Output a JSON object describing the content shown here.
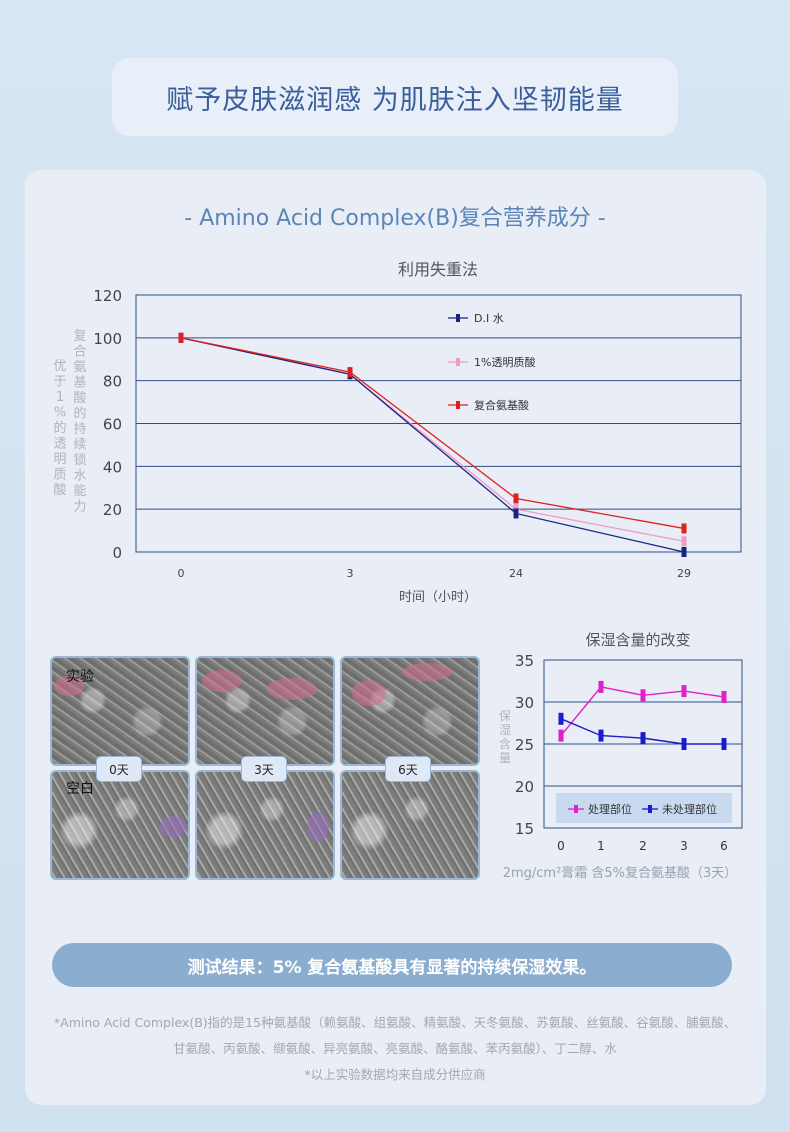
{
  "banner": {
    "title": "赋予皮肤滋润感  为肌肤注入坚韧能量"
  },
  "subtitle": "- Amino Acid Complex(B)复合营养成分 -",
  "chart_data": [
    {
      "type": "line",
      "title": "利用失重法",
      "xlabel": "时间（小时）",
      "ylabel_left": "优于1%的透明质酸",
      "ylabel_right": "复合氨基酸的持续锁水能力",
      "categories": [
        "0",
        "3",
        "24",
        "29"
      ],
      "ylim": [
        0,
        120
      ],
      "yticks": [
        0,
        20,
        40,
        60,
        80,
        100,
        120
      ],
      "grid": true,
      "legend_position": "top-right-inside",
      "series": [
        {
          "name": "D.I 水",
          "color": "#1a237e",
          "values": [
            100,
            83,
            18,
            0
          ]
        },
        {
          "name": "1%透明质酸",
          "color": "#f29ac8",
          "values": [
            100,
            83,
            20,
            5
          ]
        },
        {
          "name": "复合氨基酸",
          "color": "#e02020",
          "values": [
            100,
            84,
            25,
            11
          ]
        }
      ]
    },
    {
      "type": "line",
      "title": "保湿含量的改变",
      "ylabel": "保湿含量",
      "categories": [
        "0",
        "1",
        "2",
        "3",
        "6"
      ],
      "ylim": [
        15,
        35
      ],
      "yticks": [
        15,
        20,
        25,
        30,
        35
      ],
      "grid": true,
      "legend_position": "bottom",
      "series": [
        {
          "name": "处理部位",
          "color": "#e020c8",
          "values": [
            26,
            31.8,
            30.8,
            31.3,
            30.6
          ]
        },
        {
          "name": "未处理部位",
          "color": "#1a1ad0",
          "values": [
            28,
            26,
            25.7,
            25,
            25
          ]
        }
      ]
    }
  ],
  "photos": {
    "row_labels": [
      "实验",
      "空白"
    ],
    "day_tags": [
      "0天",
      "3天",
      "6天"
    ]
  },
  "chart2_caption": "2mg/cm²膏霜 含5%复合氨基酸（3天）",
  "result": "测试结果：5% 复合氨基酸具有显著的持续保湿效果。",
  "footnotes": {
    "line1": "*Amino Acid Complex(B)指的是15种氨基酸（赖氨酸、组氨酸、精氨酸、天冬氨酸、苏氨酸、丝氨酸、谷氨酸、脯氨酸、",
    "line2": "甘氨酸、丙氨酸、缬氨酸、异亮氨酸、亮氨酸、酪氨酸、苯丙氨酸）、丁二醇、水",
    "line3": "*以上实验数据均来自成分供应商"
  }
}
